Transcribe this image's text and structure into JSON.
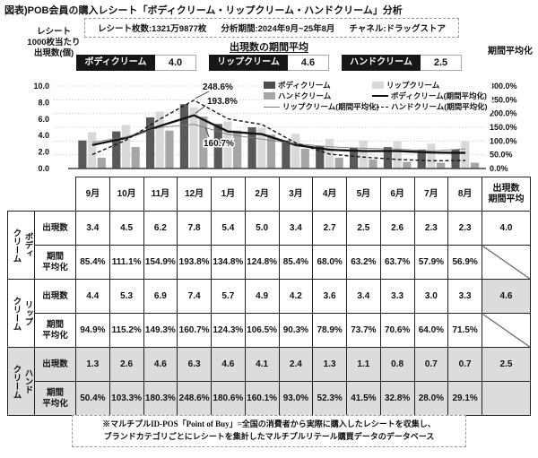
{
  "title": "図表)POB会員の購入レシート「ボディクリーム・リップクリーム・ハンドクリーム」分析",
  "info_box": {
    "receipt_count": "レシート枚数:1321万9877枚",
    "period": "分析期間:2024年9月~25年8月",
    "channel": "チャネル:ドラッグストア"
  },
  "left_axis_caption": "レシート\n1000枚当たり\n出現数(個)",
  "center_heading": "出現数の期間平均",
  "right_axis_caption": "期間平均化",
  "summary": [
    {
      "label": "ボディクリーム",
      "value": "4.0"
    },
    {
      "label": "リップクリーム",
      "value": "4.6"
    },
    {
      "label": "ハンドクリーム",
      "value": "2.5"
    }
  ],
  "chart_data": {
    "type": "bar+line combo",
    "categories": [
      "9月",
      "10月",
      "11月",
      "12月",
      "1月",
      "2月",
      "3月",
      "4月",
      "5月",
      "6月",
      "7月",
      "8月"
    ],
    "bar_series": [
      {
        "name": "ボディクリーム",
        "color": "#595959",
        "axis": "left",
        "values": [
          3.4,
          4.5,
          6.2,
          7.8,
          5.4,
          5.0,
          3.4,
          2.7,
          2.5,
          2.6,
          2.3,
          2.3
        ]
      },
      {
        "name": "リップクリーム",
        "color": "#d9d9d9",
        "axis": "left",
        "values": [
          4.4,
          5.3,
          6.9,
          7.4,
          5.7,
          4.9,
          4.2,
          3.6,
          3.4,
          3.3,
          3.0,
          3.3
        ]
      },
      {
        "name": "ハンドクリーム",
        "color": "#a6a6a6",
        "axis": "left",
        "values": [
          1.3,
          2.6,
          4.6,
          6.3,
          4.6,
          4.1,
          2.4,
          1.3,
          1.1,
          0.8,
          0.7,
          0.7
        ]
      }
    ],
    "line_series": [
      {
        "name": "ボディクリーム(期間平均化)",
        "style": "solid-thick",
        "color": "#141414",
        "axis": "right",
        "values": [
          85.4,
          111.1,
          154.9,
          193.8,
          134.8,
          124.8,
          85.4,
          68.0,
          63.2,
          63.7,
          57.9,
          56.9
        ]
      },
      {
        "name": "リップクリーム(期間平均化)",
        "style": "solid-thin",
        "color": "#7a7a7a",
        "axis": "right",
        "values": [
          94.9,
          115.2,
          149.3,
          160.7,
          124.3,
          106.5,
          90.3,
          78.9,
          73.7,
          70.6,
          64.0,
          71.5
        ]
      },
      {
        "name": "ハンドクリーム(期間平均化)",
        "style": "dashed",
        "color": "#141414",
        "axis": "right",
        "values": [
          50.4,
          103.3,
          180.3,
          248.6,
          180.6,
          160.1,
          93.0,
          52.3,
          41.5,
          32.8,
          28.0,
          29.1
        ]
      }
    ],
    "left_axis": {
      "min": 0,
      "max": 10,
      "ticks": [
        10,
        8,
        6,
        4,
        2,
        0
      ],
      "tick_labels": [
        "10.0",
        "8.0",
        "6.0",
        "4.0",
        "2.0",
        "0.0"
      ]
    },
    "right_axis": {
      "min": 0,
      "max": 300,
      "ticks": [
        300,
        250,
        200,
        150,
        100,
        50,
        0
      ],
      "tick_labels": [
        "300.0%",
        "250.0%",
        "200.0%",
        "150.0%",
        "100.0%",
        "50.0%",
        "0.0%"
      ]
    },
    "grid": "dotted horizontal",
    "legend_position": "inside top-right",
    "annotations": [
      {
        "text": "248.6%",
        "series_index": 2,
        "month_index": 3
      },
      {
        "text": "193.8%",
        "series_index": 0,
        "month_index": 3
      },
      {
        "text": "160.7%",
        "series_index": 1,
        "month_index": 3
      }
    ],
    "legend": [
      {
        "label": "ボディクリーム",
        "swatch": "sw-dark"
      },
      {
        "label": "リップクリーム",
        "swatch": "sw-light"
      },
      {
        "label": "ハンドクリーム",
        "swatch": "sw-mid"
      },
      {
        "label": "ボディクリーム(期間平均化)",
        "swatch": "ln-thick"
      },
      {
        "label": "リップクリーム(期間平均化)",
        "swatch": "ln-thin"
      },
      {
        "label": "ハンドクリーム(期間平均化)",
        "swatch": "ln-dash"
      }
    ]
  },
  "table": {
    "month_headers": [
      "9月",
      "10月",
      "11月",
      "12月",
      "1月",
      "2月",
      "3月",
      "4月",
      "5月",
      "6月",
      "7月",
      "8月"
    ],
    "avg_header": "出現数\n期間平均",
    "groups": [
      {
        "label_lines": [
          "ボディ",
          "クリーム"
        ],
        "shaded": false,
        "rows": [
          {
            "metric": "出現数",
            "values": [
              "3.4",
              "4.5",
              "6.2",
              "7.8",
              "5.4",
              "5.0",
              "3.4",
              "2.7",
              "2.5",
              "2.6",
              "2.3",
              "2.3"
            ],
            "avg": "4.0",
            "avg_shaded": false
          },
          {
            "metric": "期間\n平均化",
            "values": [
              "85.4%",
              "111.1%",
              "154.9%",
              "193.8%",
              "134.8%",
              "124.8%",
              "85.4%",
              "68.0%",
              "63.2%",
              "63.7%",
              "57.9%",
              "56.9%"
            ],
            "avg": null
          }
        ]
      },
      {
        "label_lines": [
          "リップ",
          "クリーム"
        ],
        "shaded": false,
        "rows": [
          {
            "metric": "出現数",
            "values": [
              "4.4",
              "5.3",
              "6.9",
              "7.4",
              "5.7",
              "4.9",
              "4.2",
              "3.6",
              "3.4",
              "3.3",
              "3.0",
              "3.3"
            ],
            "avg": "4.6",
            "avg_shaded": true
          },
          {
            "metric": "期間\n平均化",
            "values": [
              "94.9%",
              "115.2%",
              "149.3%",
              "160.7%",
              "124.3%",
              "106.5%",
              "90.3%",
              "78.9%",
              "73.7%",
              "70.6%",
              "64.0%",
              "71.5%"
            ],
            "avg": null
          }
        ]
      },
      {
        "label_lines": [
          "ハンド",
          "クリーム"
        ],
        "shaded": true,
        "rows": [
          {
            "metric": "出現数",
            "values": [
              "1.3",
              "2.6",
              "4.6",
              "6.3",
              "4.6",
              "4.1",
              "2.4",
              "1.3",
              "1.1",
              "0.8",
              "0.7",
              "0.7"
            ],
            "avg": "2.5",
            "avg_shaded": true
          },
          {
            "metric": "期間\n平均化",
            "values": [
              "50.4%",
              "103.3%",
              "180.3%",
              "248.6%",
              "180.6%",
              "160.1%",
              "93.0%",
              "52.3%",
              "41.5%",
              "32.8%",
              "28.0%",
              "29.1%"
            ],
            "avg": null
          }
        ]
      }
    ]
  },
  "footnote": "※マルチプルID-POS「Point of Buy」=全国の消費者から実際に購入したレシートを収集し、\nブランドカテゴリごとにレシートを集計したマルチプルリテール購買データのデータベース"
}
